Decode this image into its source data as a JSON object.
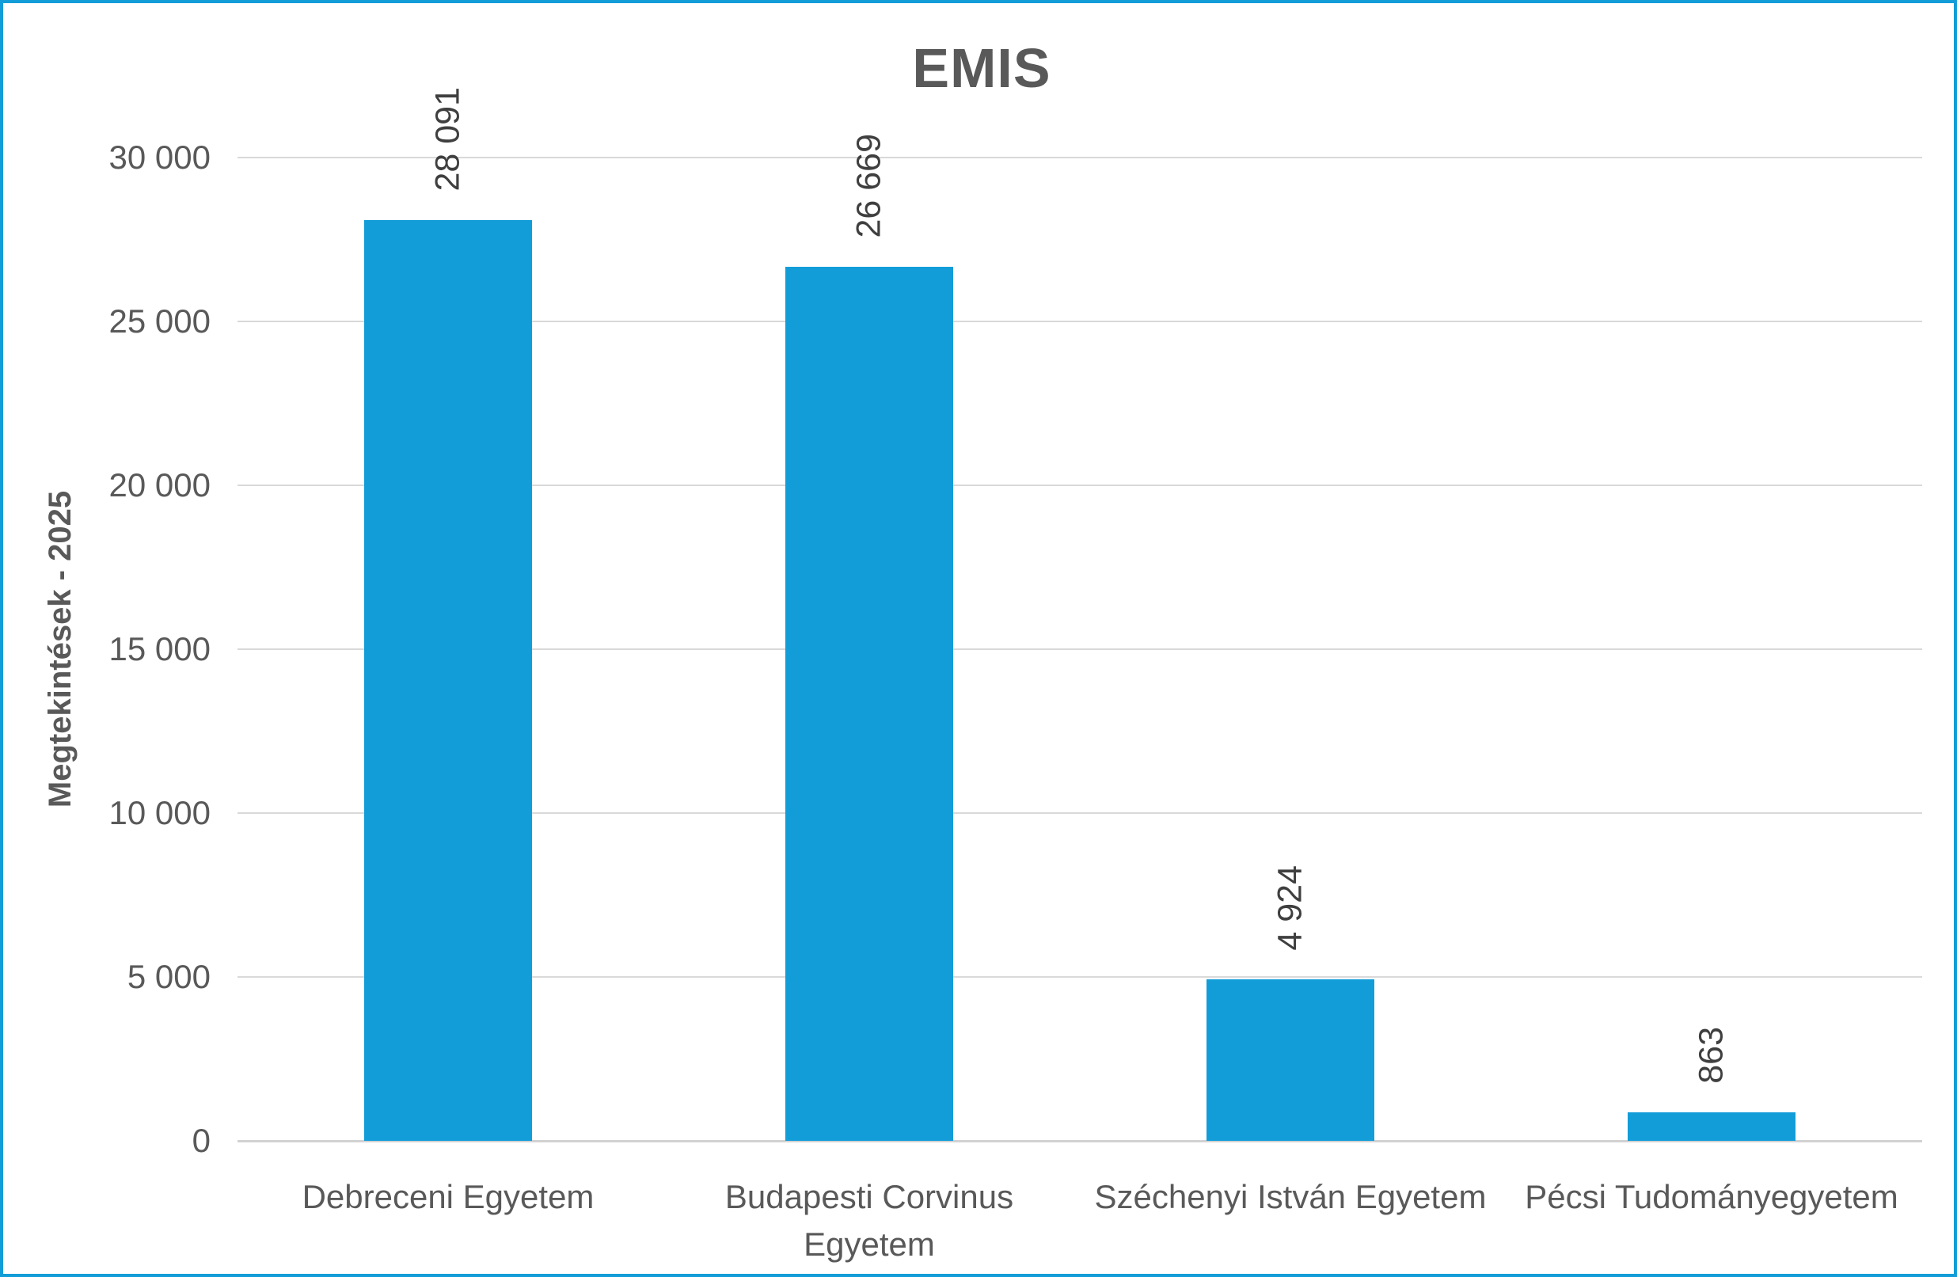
{
  "title": "EMIS",
  "y_axis": {
    "title": "Megtekintések - 2025",
    "tick_labels": [
      "30 000",
      "25 000",
      "20 000",
      "15 000",
      "10 000",
      "5 000",
      "0"
    ]
  },
  "colors": {
    "bar": "#129dd9",
    "border": "#129dd9",
    "gridline": "#d9d9d9",
    "axis_line": "#d2d2d2",
    "title_text": "#595959",
    "label_text": "#595959",
    "data_label_text": "#3f3f3f"
  },
  "chart_data": {
    "type": "bar",
    "title": "EMIS",
    "categories": [
      "Debreceni Egyetem",
      "Budapesti Corvinus\nEgyetem",
      "Széchenyi István Egyetem",
      "Pécsi Tudományegyetem"
    ],
    "values": [
      28091,
      26669,
      4924,
      863
    ],
    "data_labels": [
      "28 091",
      "26 669",
      "4 924",
      "863"
    ],
    "xlabel": "",
    "ylabel": "Megtekintések - 2025",
    "ylim": [
      0,
      30000
    ],
    "ytick_step": 5000,
    "grid": true,
    "legend": false,
    "data_label_orientation": "vertical"
  }
}
